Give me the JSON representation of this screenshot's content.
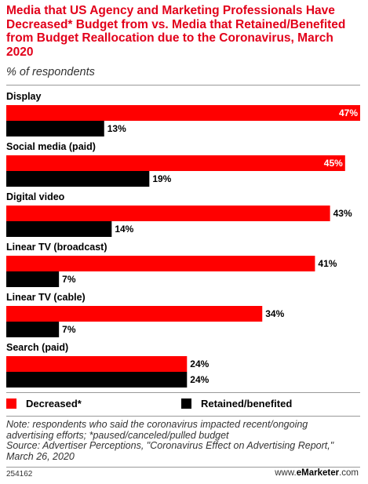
{
  "header": {
    "title": "Media that US Agency and Marketing Professionals Have Decreased* Budget from vs. Media that Retained/Benefited from Budget Reallocation due to the Coronavirus, March 2020",
    "subtitle": "% of respondents"
  },
  "chart_data": {
    "type": "bar",
    "orientation": "horizontal",
    "categories": [
      "Display",
      "Social media (paid)",
      "Digital video",
      "Linear TV (broadcast)",
      "Linear TV (cable)",
      "Search (paid)"
    ],
    "series": [
      {
        "name": "Decreased*",
        "color": "#ff0000",
        "values": [
          47,
          45,
          43,
          41,
          34,
          24
        ]
      },
      {
        "name": "Retained/benefited",
        "color": "#000000",
        "values": [
          13,
          19,
          14,
          7,
          7,
          24
        ]
      }
    ],
    "value_suffix": "%",
    "xlim": [
      0,
      47
    ]
  },
  "legend": {
    "decreased": "Decreased*",
    "retained": "Retained/benefited"
  },
  "footer": {
    "note_line1": "Note: respondents who said the coronavirus impacted recent/ongoing",
    "note_line2": "advertising efforts; *paused/canceled/pulled budget",
    "source_line1": "Source: Advertiser Perceptions, \"Coronavirus Effect on Advertising Report,\"",
    "source_line2": "March 26, 2020",
    "chart_id": "254162",
    "brand_prefix": "www.",
    "brand_name": "eMarketer",
    "brand_suffix": ".com"
  }
}
